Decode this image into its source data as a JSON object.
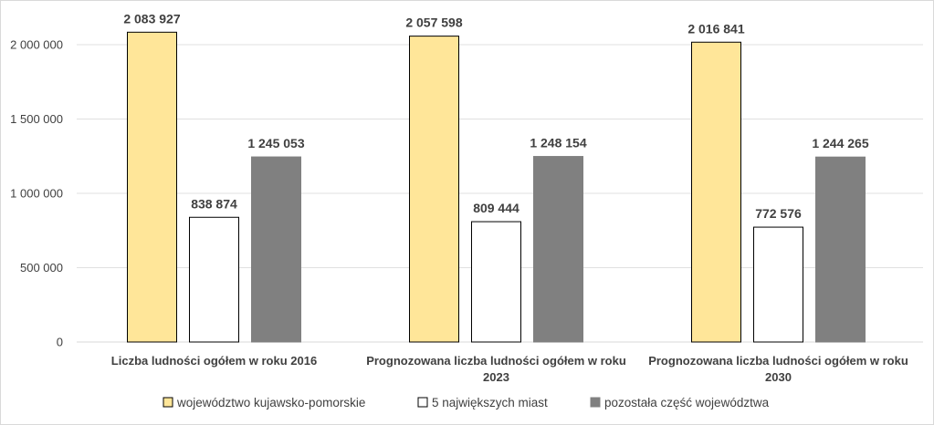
{
  "chart_data": {
    "type": "bar",
    "categories": [
      [
        "Liczba ludności ogółem w roku 2016"
      ],
      [
        "Prognozowana liczba ludności ogółem w roku",
        "2023"
      ],
      [
        "Prognozowana liczba ludności ogółem w roku",
        "2030"
      ]
    ],
    "series": [
      {
        "name": "województwo kujawsko-pomorskie",
        "color": "#FFE699",
        "stroke": "#000000",
        "values": [
          2083927,
          2057598,
          2016841
        ],
        "labels": [
          "2 083 927",
          "2 057 598",
          "2 016 841"
        ]
      },
      {
        "name": "5 największych miast",
        "color": "#FFFFFF",
        "stroke": "#000000",
        "values": [
          838874,
          809444,
          772576
        ],
        "labels": [
          "838 874",
          "809 444",
          "772 576"
        ]
      },
      {
        "name": "pozostała część województwa",
        "color": "#808080",
        "stroke": "#808080",
        "values": [
          1245053,
          1248154,
          1244265
        ],
        "labels": [
          "1 245 053",
          "1 248 154",
          "1 244 265"
        ]
      }
    ],
    "yticks": [
      0,
      500000,
      1000000,
      1500000,
      2000000
    ],
    "ytick_labels": [
      "0",
      "500 000",
      "1 000 000",
      "1 500 000",
      "2 000 000"
    ],
    "ylim": [
      0,
      2150000
    ],
    "grid": true,
    "legend_position": "bottom",
    "title": "",
    "xlabel": "",
    "ylabel": ""
  }
}
